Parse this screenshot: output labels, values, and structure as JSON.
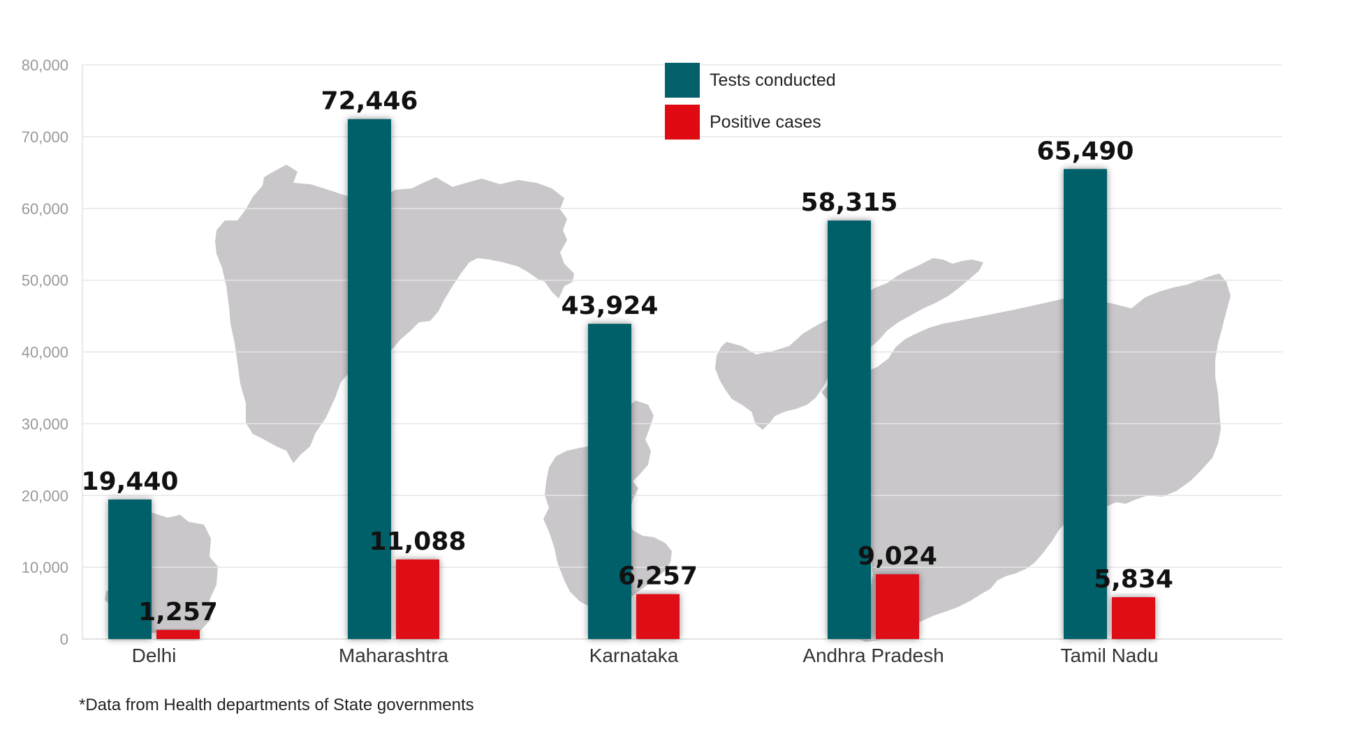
{
  "chart_data": {
    "type": "bar",
    "categories": [
      "Delhi",
      "Maharashtra",
      "Karnataka",
      "Andhra Pradesh",
      "Tamil Nadu"
    ],
    "series": [
      {
        "name": "Tests conducted",
        "color": "#04616b",
        "values": [
          19440,
          72446,
          43924,
          58315,
          65490
        ],
        "labels": [
          "19,440",
          "72,446",
          "43,924",
          "58,315",
          "65,490"
        ]
      },
      {
        "name": "Positive cases",
        "color": "#df0a12",
        "values": [
          1257,
          11088,
          6257,
          9024,
          5834
        ],
        "labels": [
          "1,257",
          "11,088",
          "6,257",
          "9,024",
          "5,834"
        ]
      }
    ],
    "yticks": [
      "0",
      "10,000",
      "20,000",
      "30,000",
      "40,000",
      "50,000",
      "60,000",
      "70,000",
      "80,000"
    ],
    "ylim": [
      0,
      80000
    ],
    "grid": true,
    "legend_position": "top-center",
    "background_shapes": [
      "state-map-silhouettes"
    ]
  },
  "footnote": "*Data from Health departments of State governments"
}
